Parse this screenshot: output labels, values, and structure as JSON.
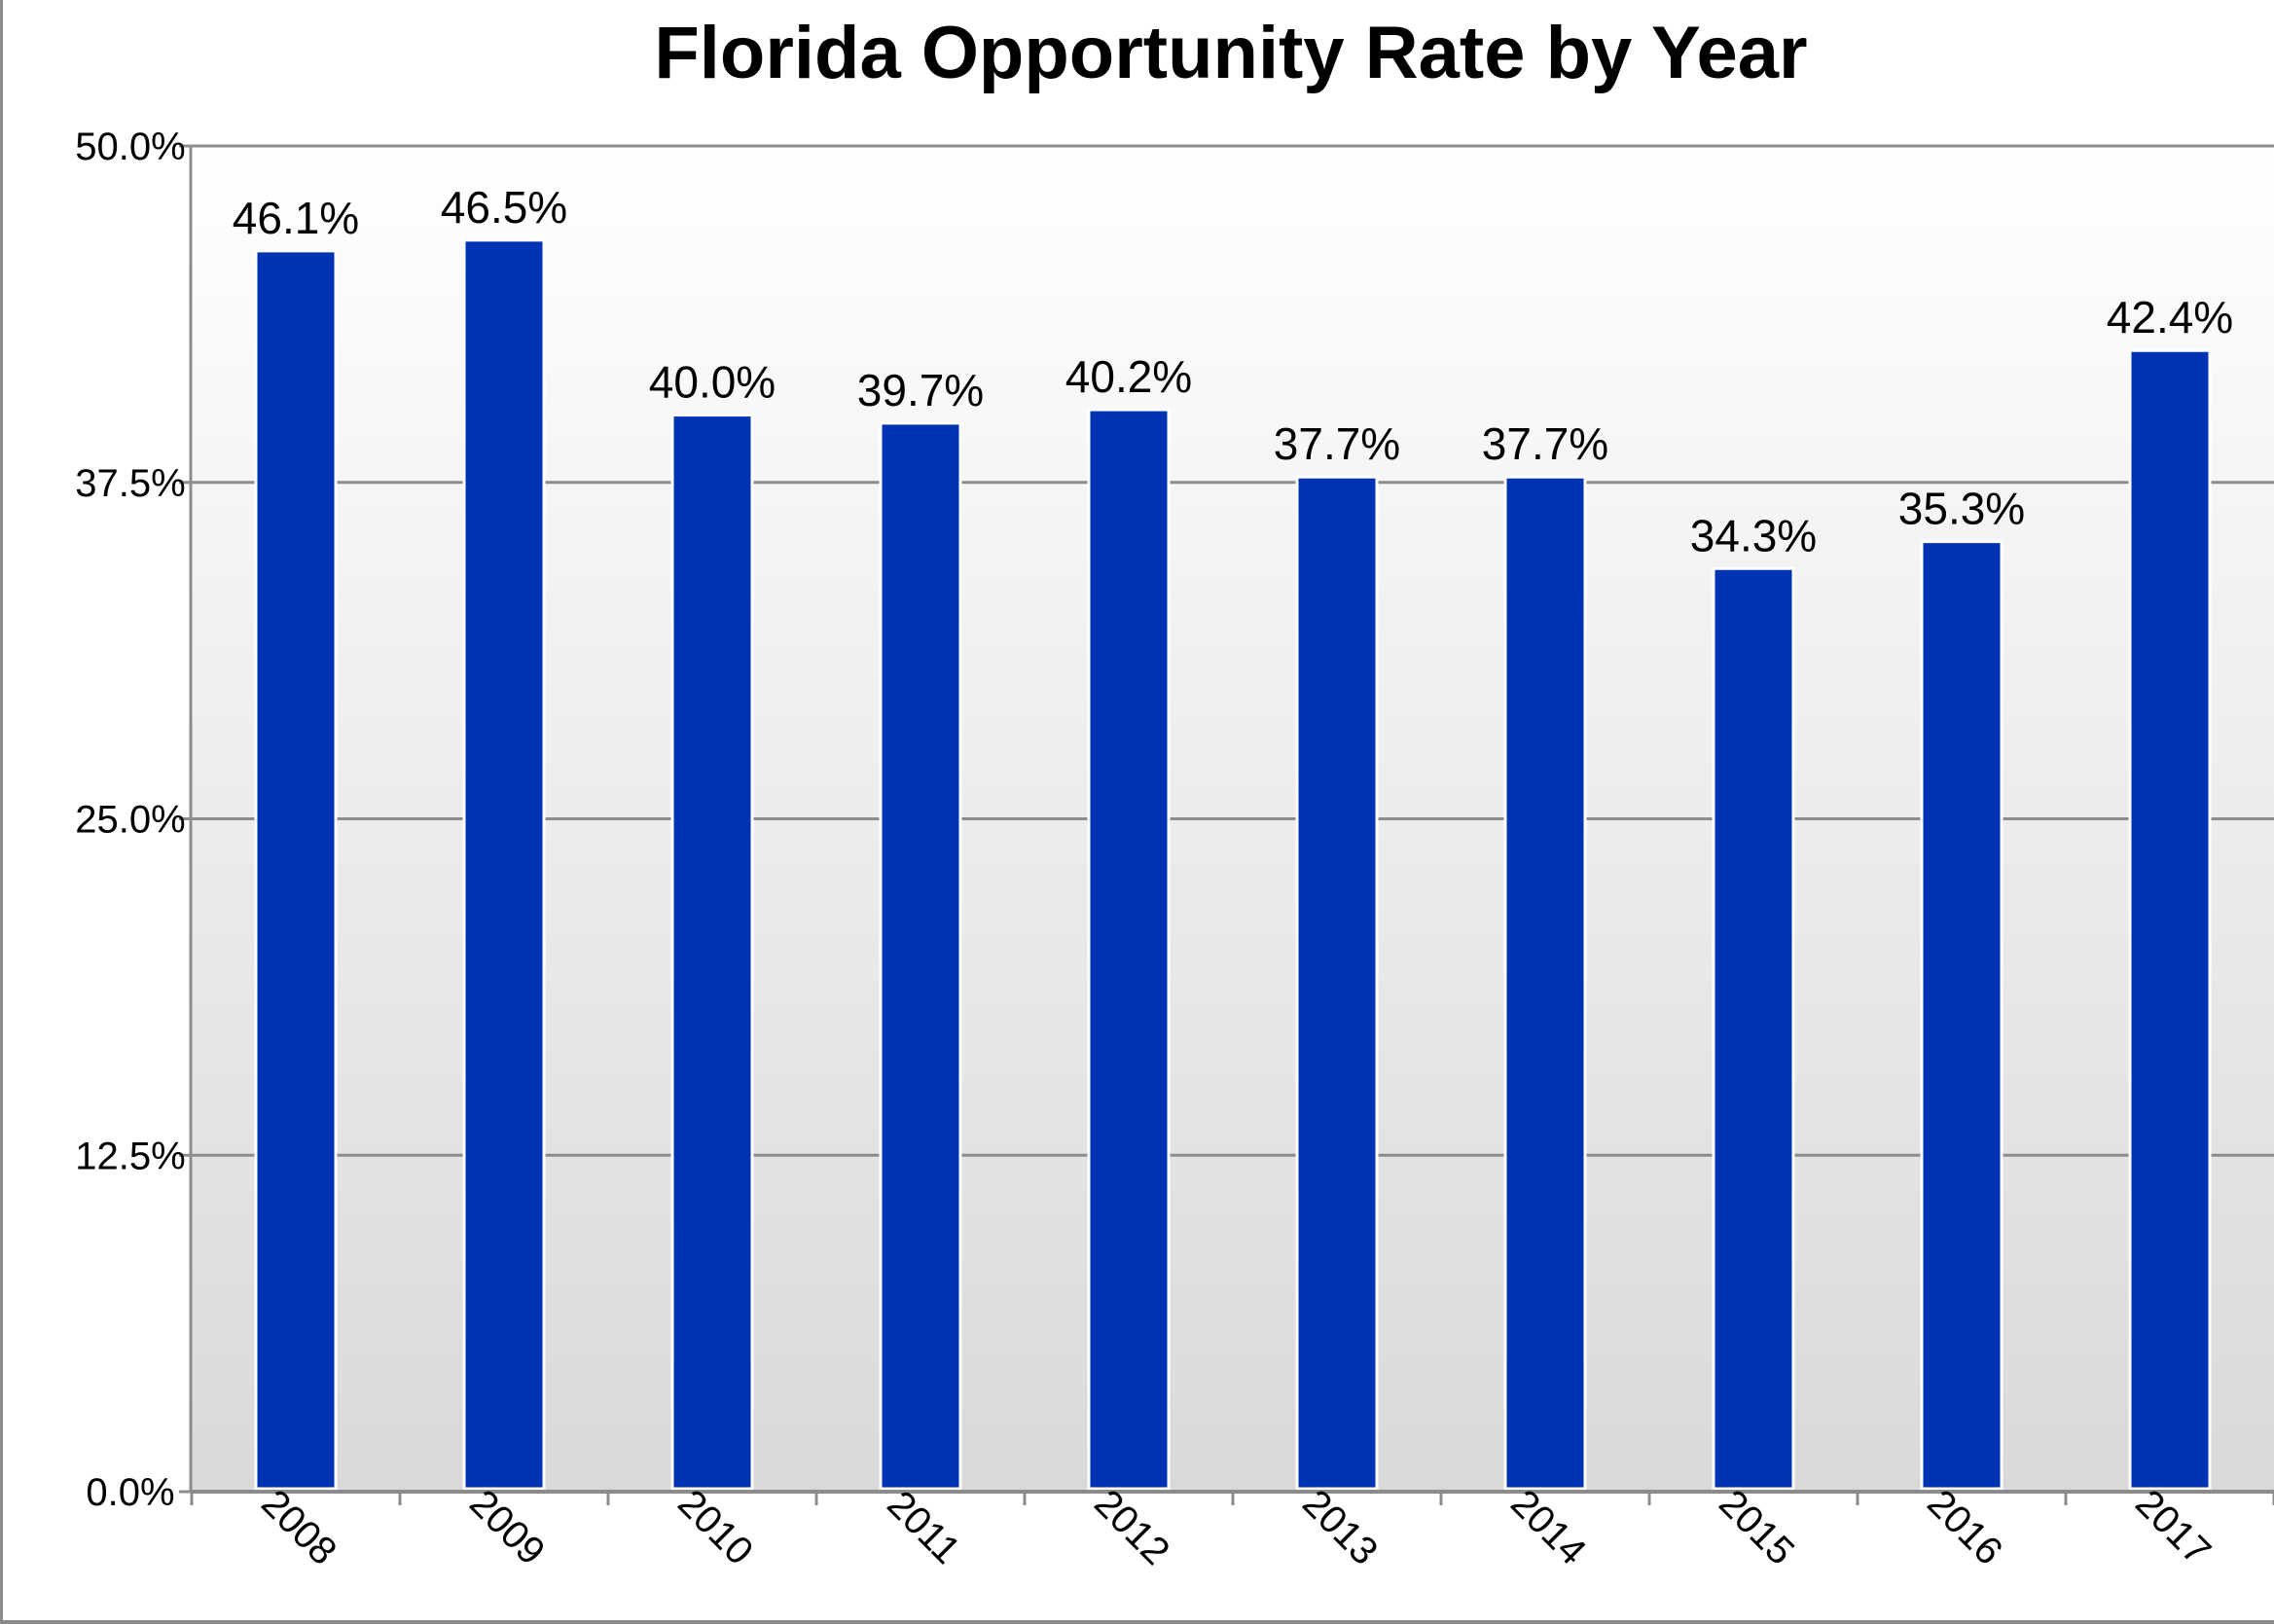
{
  "chart_data": {
    "type": "bar",
    "title": "Florida Opportunity Rate by Year",
    "xlabel": "",
    "ylabel": "",
    "categories": [
      "2008",
      "2009",
      "2010",
      "2011",
      "2012",
      "2013",
      "2014",
      "2015",
      "2016",
      "2017"
    ],
    "values": [
      46.1,
      46.5,
      40.0,
      39.7,
      40.2,
      37.7,
      37.7,
      34.3,
      35.3,
      42.4
    ],
    "data_labels": [
      "46.1%",
      "46.5%",
      "40.0%",
      "39.7%",
      "40.2%",
      "37.7%",
      "37.7%",
      "34.3%",
      "35.3%",
      "42.4%"
    ],
    "yticks": [
      0,
      12.5,
      25,
      37.5,
      50
    ],
    "ytick_labels": [
      "0.0%",
      "12.5%",
      "25.0%",
      "37.5%",
      "50.0%"
    ],
    "ylim": [
      0,
      50
    ],
    "grid": true,
    "legend": "none",
    "colors": {
      "bar": "#0033b3",
      "bar_edge": "#ffffff",
      "grid": "#8c8c8c",
      "axis": "#8c8c8c",
      "plot_bg_top": "#ffffff",
      "plot_bg_bottom": "#d9d9d9"
    }
  }
}
